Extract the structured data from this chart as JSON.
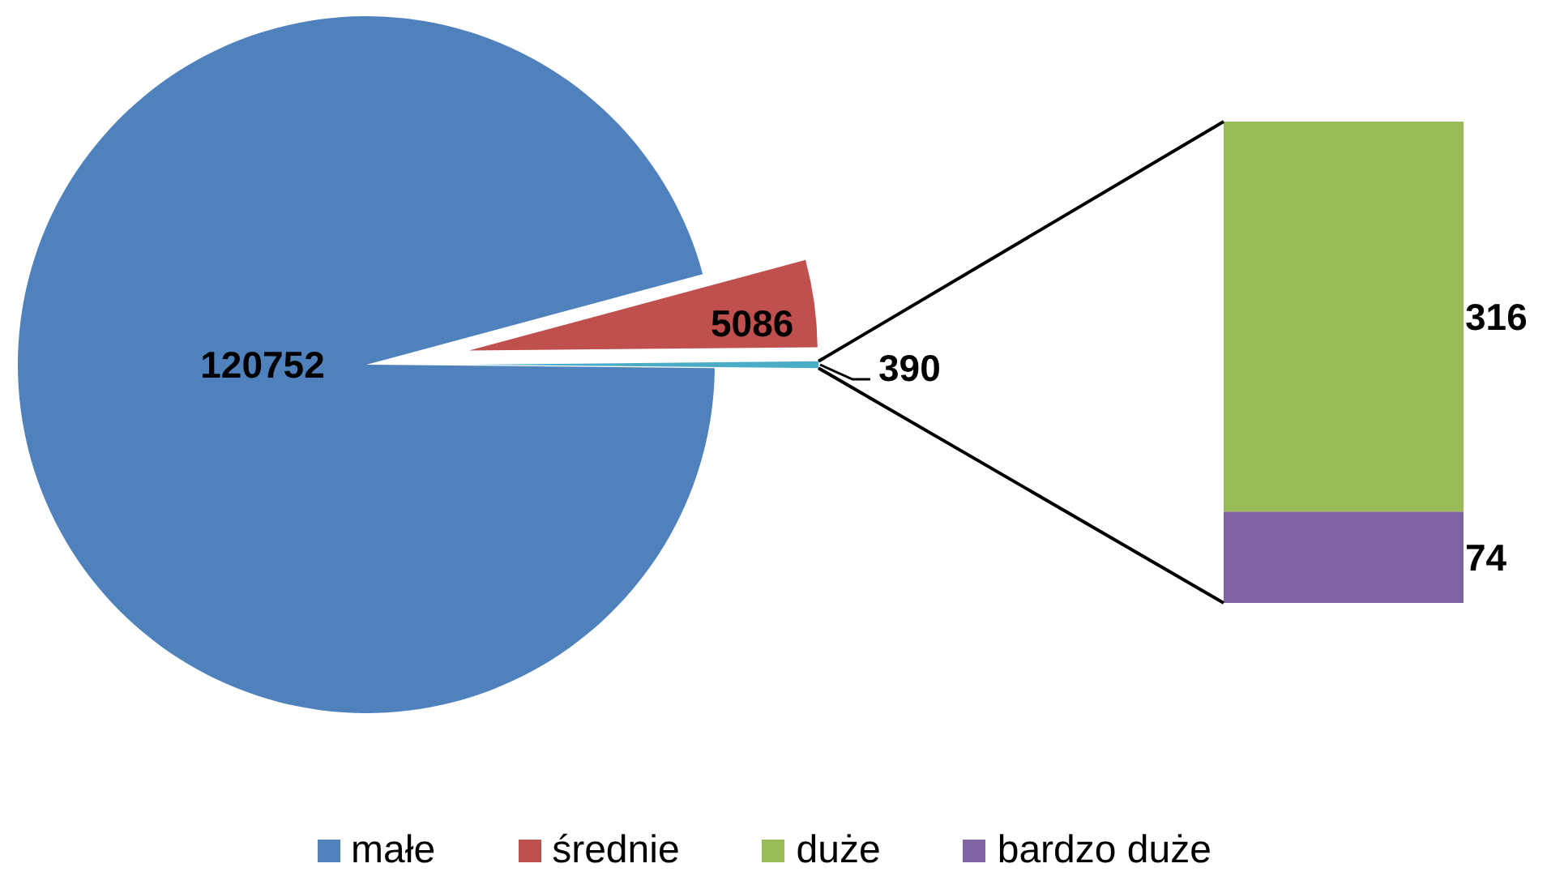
{
  "chart_data": [
    {
      "type": "pie",
      "categories": [
        "małe",
        "średnie",
        null
      ],
      "values": [
        120752,
        5086,
        390
      ],
      "colors": [
        "#4f81bd",
        "#c0504d",
        "#4bacc6"
      ],
      "data_labels": true,
      "legend": "bottom"
    },
    {
      "type": "bar",
      "stacked": true,
      "categories": [
        null
      ],
      "series": [
        {
          "name": "bardzo duże",
          "color": "#8064a2",
          "values": [
            74
          ]
        },
        {
          "name": "duże",
          "color": "#9bbb59",
          "values": [
            316
          ]
        }
      ],
      "data_labels": true,
      "legend": "bottom",
      "tick_labels": false
    }
  ]
}
